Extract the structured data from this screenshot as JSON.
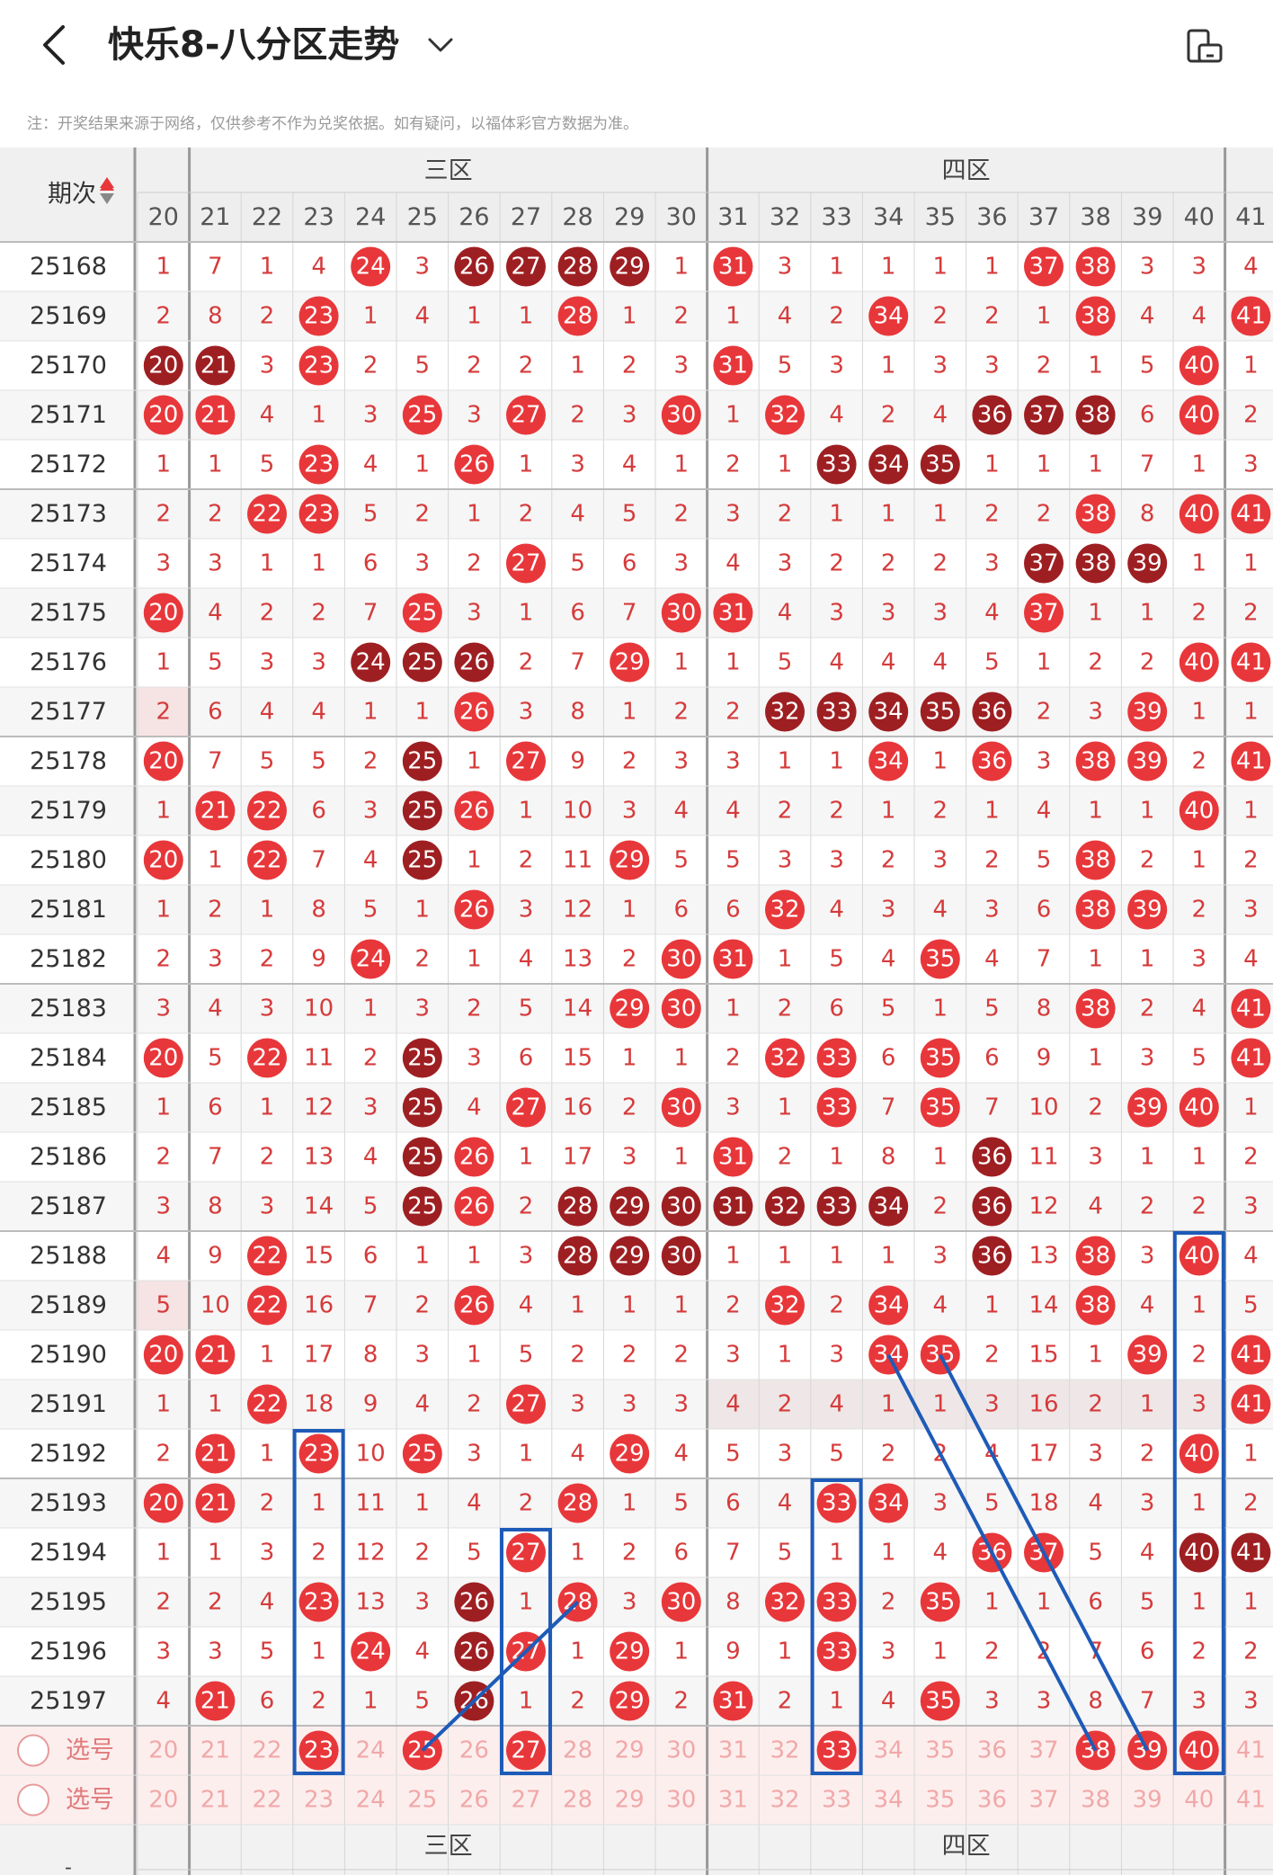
{
  "header": {
    "title": "快乐8-八分区走势",
    "back_icon": "chevron-left-icon",
    "dropdown_icon": "chevron-down-icon",
    "rotate_icon": "screen-rotate-icon"
  },
  "note": "注：开奖结果来源于网络，仅供参考不作为兑奖依据。如有疑问，以福体彩官方数据为准。",
  "table": {
    "period_header": "期次",
    "zones": [
      {
        "label": "三区",
        "from": 21,
        "to": 30
      },
      {
        "label": "四区",
        "from": 31,
        "to": 40
      }
    ],
    "columns": [
      20,
      21,
      22,
      23,
      24,
      25,
      26,
      27,
      28,
      29,
      30,
      31,
      32,
      33,
      34,
      35,
      36,
      37,
      38,
      39,
      40,
      41
    ],
    "rows": [
      {
        "period": "25168",
        "cells": [
          "1",
          "7",
          "1",
          "4",
          "B24",
          "3",
          "D26",
          "D27",
          "D28",
          "D29",
          "1",
          "B31",
          "3",
          "1",
          "1",
          "1",
          "1",
          "B37",
          "B38",
          "3",
          "3",
          "4"
        ]
      },
      {
        "period": "25169",
        "cells": [
          "2",
          "8",
          "2",
          "B23",
          "1",
          "4",
          "1",
          "1",
          "B28",
          "1",
          "2",
          "1",
          "4",
          "2",
          "B34",
          "2",
          "2",
          "1",
          "B38",
          "4",
          "4",
          "B41"
        ]
      },
      {
        "period": "25170",
        "cells": [
          "D20",
          "D21",
          "3",
          "B23",
          "2",
          "5",
          "2",
          "2",
          "1",
          "2",
          "3",
          "B31",
          "5",
          "3",
          "1",
          "3",
          "3",
          "2",
          "1",
          "5",
          "B40",
          "1"
        ]
      },
      {
        "period": "25171",
        "cells": [
          "B20",
          "B21",
          "4",
          "1",
          "3",
          "B25",
          "3",
          "B27",
          "2",
          "3",
          "B30",
          "1",
          "B32",
          "4",
          "2",
          "4",
          "D36",
          "D37",
          "D38",
          "6",
          "B40",
          "2"
        ]
      },
      {
        "period": "25172",
        "cells": [
          "1",
          "1",
          "5",
          "B23",
          "4",
          "1",
          "B26",
          "1",
          "3",
          "4",
          "1",
          "2",
          "1",
          "D33",
          "D34",
          "D35",
          "1",
          "1",
          "1",
          "7",
          "1",
          "3"
        ]
      },
      {
        "period": "25173",
        "cells": [
          "2",
          "2",
          "B22",
          "B23",
          "5",
          "2",
          "1",
          "2",
          "4",
          "5",
          "2",
          "3",
          "2",
          "1",
          "1",
          "1",
          "2",
          "2",
          "B38",
          "8",
          "B40",
          "B41"
        ]
      },
      {
        "period": "25174",
        "cells": [
          "3",
          "3",
          "1",
          "1",
          "6",
          "3",
          "2",
          "B27",
          "5",
          "6",
          "3",
          "4",
          "3",
          "2",
          "2",
          "2",
          "3",
          "D37",
          "D38",
          "D39",
          "1",
          "1"
        ]
      },
      {
        "period": "25175",
        "cells": [
          "B20",
          "4",
          "2",
          "2",
          "7",
          "B25",
          "3",
          "1",
          "6",
          "7",
          "B30",
          "B31",
          "4",
          "3",
          "3",
          "3",
          "4",
          "B37",
          "1",
          "1",
          "2",
          "2"
        ]
      },
      {
        "period": "25176",
        "cells": [
          "1",
          "5",
          "3",
          "3",
          "D24",
          "D25",
          "D26",
          "2",
          "7",
          "B29",
          "1",
          "1",
          "5",
          "4",
          "4",
          "4",
          "5",
          "1",
          "2",
          "2",
          "B40",
          "B41"
        ]
      },
      {
        "period": "25177",
        "cells": [
          "2",
          "6",
          "4",
          "4",
          "1",
          "1",
          "B26",
          "3",
          "8",
          "1",
          "2",
          "2",
          "D32",
          "D33",
          "D34",
          "D35",
          "D36",
          "2",
          "3",
          "B39",
          "1",
          "1"
        ]
      },
      {
        "period": "25178",
        "cells": [
          "B20",
          "7",
          "5",
          "5",
          "2",
          "D25",
          "1",
          "B27",
          "9",
          "2",
          "3",
          "3",
          "1",
          "1",
          "B34",
          "1",
          "B36",
          "3",
          "B38",
          "B39",
          "2",
          "B41"
        ]
      },
      {
        "period": "25179",
        "cells": [
          "1",
          "B21",
          "B22",
          "6",
          "3",
          "D25",
          "B26",
          "1",
          "10",
          "3",
          "4",
          "4",
          "2",
          "2",
          "1",
          "2",
          "1",
          "4",
          "1",
          "1",
          "B40",
          "1"
        ]
      },
      {
        "period": "25180",
        "cells": [
          "B20",
          "1",
          "B22",
          "7",
          "4",
          "D25",
          "1",
          "2",
          "11",
          "B29",
          "5",
          "5",
          "3",
          "3",
          "2",
          "3",
          "2",
          "5",
          "B38",
          "2",
          "1",
          "2"
        ]
      },
      {
        "period": "25181",
        "cells": [
          "1",
          "2",
          "1",
          "8",
          "5",
          "1",
          "B26",
          "3",
          "12",
          "1",
          "6",
          "6",
          "B32",
          "4",
          "3",
          "4",
          "3",
          "6",
          "B38",
          "B39",
          "2",
          "3"
        ]
      },
      {
        "period": "25182",
        "cells": [
          "2",
          "3",
          "2",
          "9",
          "B24",
          "2",
          "1",
          "4",
          "13",
          "2",
          "B30",
          "B31",
          "1",
          "5",
          "4",
          "B35",
          "4",
          "7",
          "1",
          "1",
          "3",
          "4"
        ]
      },
      {
        "period": "25183",
        "cells": [
          "3",
          "4",
          "3",
          "10",
          "1",
          "3",
          "2",
          "5",
          "14",
          "B29",
          "B30",
          "1",
          "2",
          "6",
          "5",
          "1",
          "5",
          "8",
          "B38",
          "2",
          "4",
          "B41"
        ]
      },
      {
        "period": "25184",
        "cells": [
          "B20",
          "5",
          "B22",
          "11",
          "2",
          "D25",
          "3",
          "6",
          "15",
          "1",
          "1",
          "2",
          "B32",
          "B33",
          "6",
          "B35",
          "6",
          "9",
          "1",
          "3",
          "5",
          "B41"
        ]
      },
      {
        "period": "25185",
        "cells": [
          "1",
          "6",
          "1",
          "12",
          "3",
          "D25",
          "4",
          "B27",
          "16",
          "2",
          "B30",
          "3",
          "1",
          "B33",
          "7",
          "B35",
          "7",
          "10",
          "2",
          "B39",
          "B40",
          "1"
        ]
      },
      {
        "period": "25186",
        "cells": [
          "2",
          "7",
          "2",
          "13",
          "4",
          "D25",
          "B26",
          "1",
          "17",
          "3",
          "1",
          "B31",
          "2",
          "1",
          "8",
          "1",
          "D36",
          "11",
          "3",
          "1",
          "1",
          "2"
        ]
      },
      {
        "period": "25187",
        "cells": [
          "3",
          "8",
          "3",
          "14",
          "5",
          "D25",
          "B26",
          "2",
          "D28",
          "D29",
          "D30",
          "D31",
          "D32",
          "D33",
          "D34",
          "2",
          "D36",
          "12",
          "4",
          "2",
          "2",
          "3"
        ]
      },
      {
        "period": "25188",
        "cells": [
          "4",
          "9",
          "B22",
          "15",
          "6",
          "1",
          "1",
          "3",
          "D28",
          "D29",
          "D30",
          "1",
          "1",
          "1",
          "1",
          "3",
          "D36",
          "13",
          "B38",
          "3",
          "B40",
          "4"
        ]
      },
      {
        "period": "25189",
        "cells": [
          "5",
          "10",
          "B22",
          "16",
          "7",
          "2",
          "B26",
          "4",
          "1",
          "1",
          "1",
          "2",
          "B32",
          "2",
          "B34",
          "4",
          "1",
          "14",
          "B38",
          "4",
          "1",
          "5"
        ]
      },
      {
        "period": "25190",
        "cells": [
          "B20",
          "B21",
          "1",
          "17",
          "8",
          "3",
          "1",
          "5",
          "2",
          "2",
          "2",
          "3",
          "1",
          "3",
          "B34",
          "B35",
          "2",
          "15",
          "1",
          "B39",
          "2",
          "B41"
        ]
      },
      {
        "period": "25191",
        "cells": [
          "1",
          "1",
          "B22",
          "18",
          "9",
          "4",
          "2",
          "B27",
          "3",
          "3",
          "3",
          "4",
          "2",
          "4",
          "1",
          "1",
          "3",
          "16",
          "2",
          "1",
          "3",
          "B41"
        ]
      },
      {
        "period": "25192",
        "cells": [
          "2",
          "B21",
          "1",
          "B23",
          "10",
          "B25",
          "3",
          "1",
          "4",
          "B29",
          "4",
          "5",
          "3",
          "5",
          "2",
          "2",
          "4",
          "17",
          "3",
          "2",
          "B40",
          "1"
        ]
      },
      {
        "period": "25193",
        "cells": [
          "B20",
          "B21",
          "2",
          "1",
          "11",
          "1",
          "4",
          "2",
          "B28",
          "1",
          "5",
          "6",
          "4",
          "B33",
          "B34",
          "3",
          "5",
          "18",
          "4",
          "3",
          "1",
          "2"
        ]
      },
      {
        "period": "25194",
        "cells": [
          "1",
          "1",
          "3",
          "2",
          "12",
          "2",
          "5",
          "B27",
          "1",
          "2",
          "6",
          "7",
          "5",
          "1",
          "1",
          "4",
          "B36",
          "B37",
          "5",
          "4",
          "D40",
          "D41"
        ]
      },
      {
        "period": "25195",
        "cells": [
          "2",
          "2",
          "4",
          "B23",
          "13",
          "3",
          "D26",
          "1",
          "B28",
          "3",
          "B30",
          "8",
          "B32",
          "B33",
          "2",
          "B35",
          "1",
          "1",
          "6",
          "5",
          "1",
          "1"
        ]
      },
      {
        "period": "25196",
        "cells": [
          "3",
          "3",
          "5",
          "1",
          "B24",
          "4",
          "D26",
          "B27",
          "1",
          "B29",
          "1",
          "9",
          "1",
          "B33",
          "3",
          "1",
          "2",
          "2",
          "7",
          "6",
          "2",
          "2"
        ]
      },
      {
        "period": "25197",
        "cells": [
          "4",
          "B21",
          "6",
          "2",
          "1",
          "5",
          "D26",
          "1",
          "2",
          "B29",
          "2",
          "B31",
          "2",
          "1",
          "4",
          "B35",
          "3",
          "3",
          "8",
          "7",
          "3",
          "3"
        ]
      }
    ],
    "select_rows": [
      {
        "label": "选号",
        "selected": [
          23,
          25,
          27,
          33,
          38,
          39,
          40
        ]
      },
      {
        "label": "选号",
        "selected": []
      }
    ],
    "footer_zones": [
      "三区",
      "四区"
    ],
    "footer_period": "-"
  },
  "colors": {
    "red": "#e8373a",
    "dark": "#9e1f22",
    "text": "#d63b3b",
    "header_bg": "#f0f0f0",
    "line": "#1e5bb8",
    "select_bg": "#fdeeee"
  }
}
